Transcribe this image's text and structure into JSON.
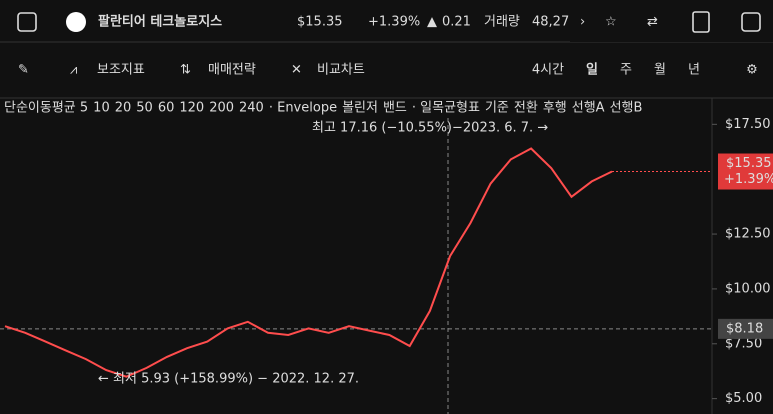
{
  "header": {
    "name": "팔란티어 테크놀로지스",
    "price": "$15.35",
    "change_pct": "+1.39%",
    "change": "0.21",
    "volume_label": "거래량",
    "volume": "48,27"
  },
  "toolbar": {
    "indicators": "보조지표",
    "strategy": "매매전략",
    "compare": "비교차트",
    "periods": [
      "4시간",
      "일",
      "주",
      "월",
      "년"
    ],
    "active_period": 1
  },
  "legend": [
    {
      "text": "단순이동평균 5",
      "color": "#dddddd"
    },
    {
      "text": "10",
      "color": "#ff4d4d"
    },
    {
      "text": "20",
      "color": "#ffa726"
    },
    {
      "text": "50",
      "color": "#26e0e0"
    },
    {
      "text": "60",
      "color": "#66bb6a"
    },
    {
      "text": "120",
      "color": "#26a69a"
    },
    {
      "text": "200",
      "color": "#4f8df5"
    },
    {
      "text": "240",
      "color": "#d63ad6"
    },
    {
      "text": "· Envelope",
      "color": "#dddddd"
    },
    {
      "text": "볼린저",
      "color": "#777777"
    },
    {
      "text": "밴드",
      "color": "#ffffff"
    },
    {
      "text": "· 일목균형표",
      "color": "#dddddd"
    },
    {
      "text": "기준",
      "color": "#ffffff"
    },
    {
      "text": "전환",
      "color": "#ffffff"
    },
    {
      "text": "후행",
      "color": "#ffffff"
    },
    {
      "text": "선행A",
      "color": "#ff4d4d"
    },
    {
      "text": "선행B",
      "color": "#4f8df5"
    }
  ],
  "chart": {
    "high_note": "최고 17.16 (−10.55%)−2023. 6. 7. →",
    "low_note": "← 최저 5.93 (+158.99%) − 2022. 12. 27.",
    "ylim": [
      4.3,
      18.7
    ],
    "yticks": [
      {
        "value": 5,
        "label": "$5.00"
      },
      {
        "value": 7.5,
        "label": "$7.50"
      },
      {
        "value": 10,
        "label": "$10.00"
      },
      {
        "value": 12.5,
        "label": "$12.50"
      },
      {
        "value": 17.5,
        "label": "$17.50"
      }
    ],
    "close": [
      8.3,
      8.0,
      7.6,
      7.2,
      6.8,
      6.3,
      6.0,
      6.4,
      6.9,
      7.3,
      7.6,
      8.2,
      8.5,
      8.0,
      7.9,
      8.2,
      8.0,
      8.3,
      8.1,
      7.9,
      7.4,
      9.0,
      11.5,
      13.0,
      14.8,
      15.9,
      16.4,
      15.5,
      14.2,
      14.9,
      15.35
    ],
    "line_color": "#ff4d4d",
    "last_price": {
      "value": 15.35,
      "label": "$15.35"
    },
    "last_change": "+1.39%",
    "crosshair": {
      "value": 8.18,
      "label": "$8.18"
    }
  }
}
